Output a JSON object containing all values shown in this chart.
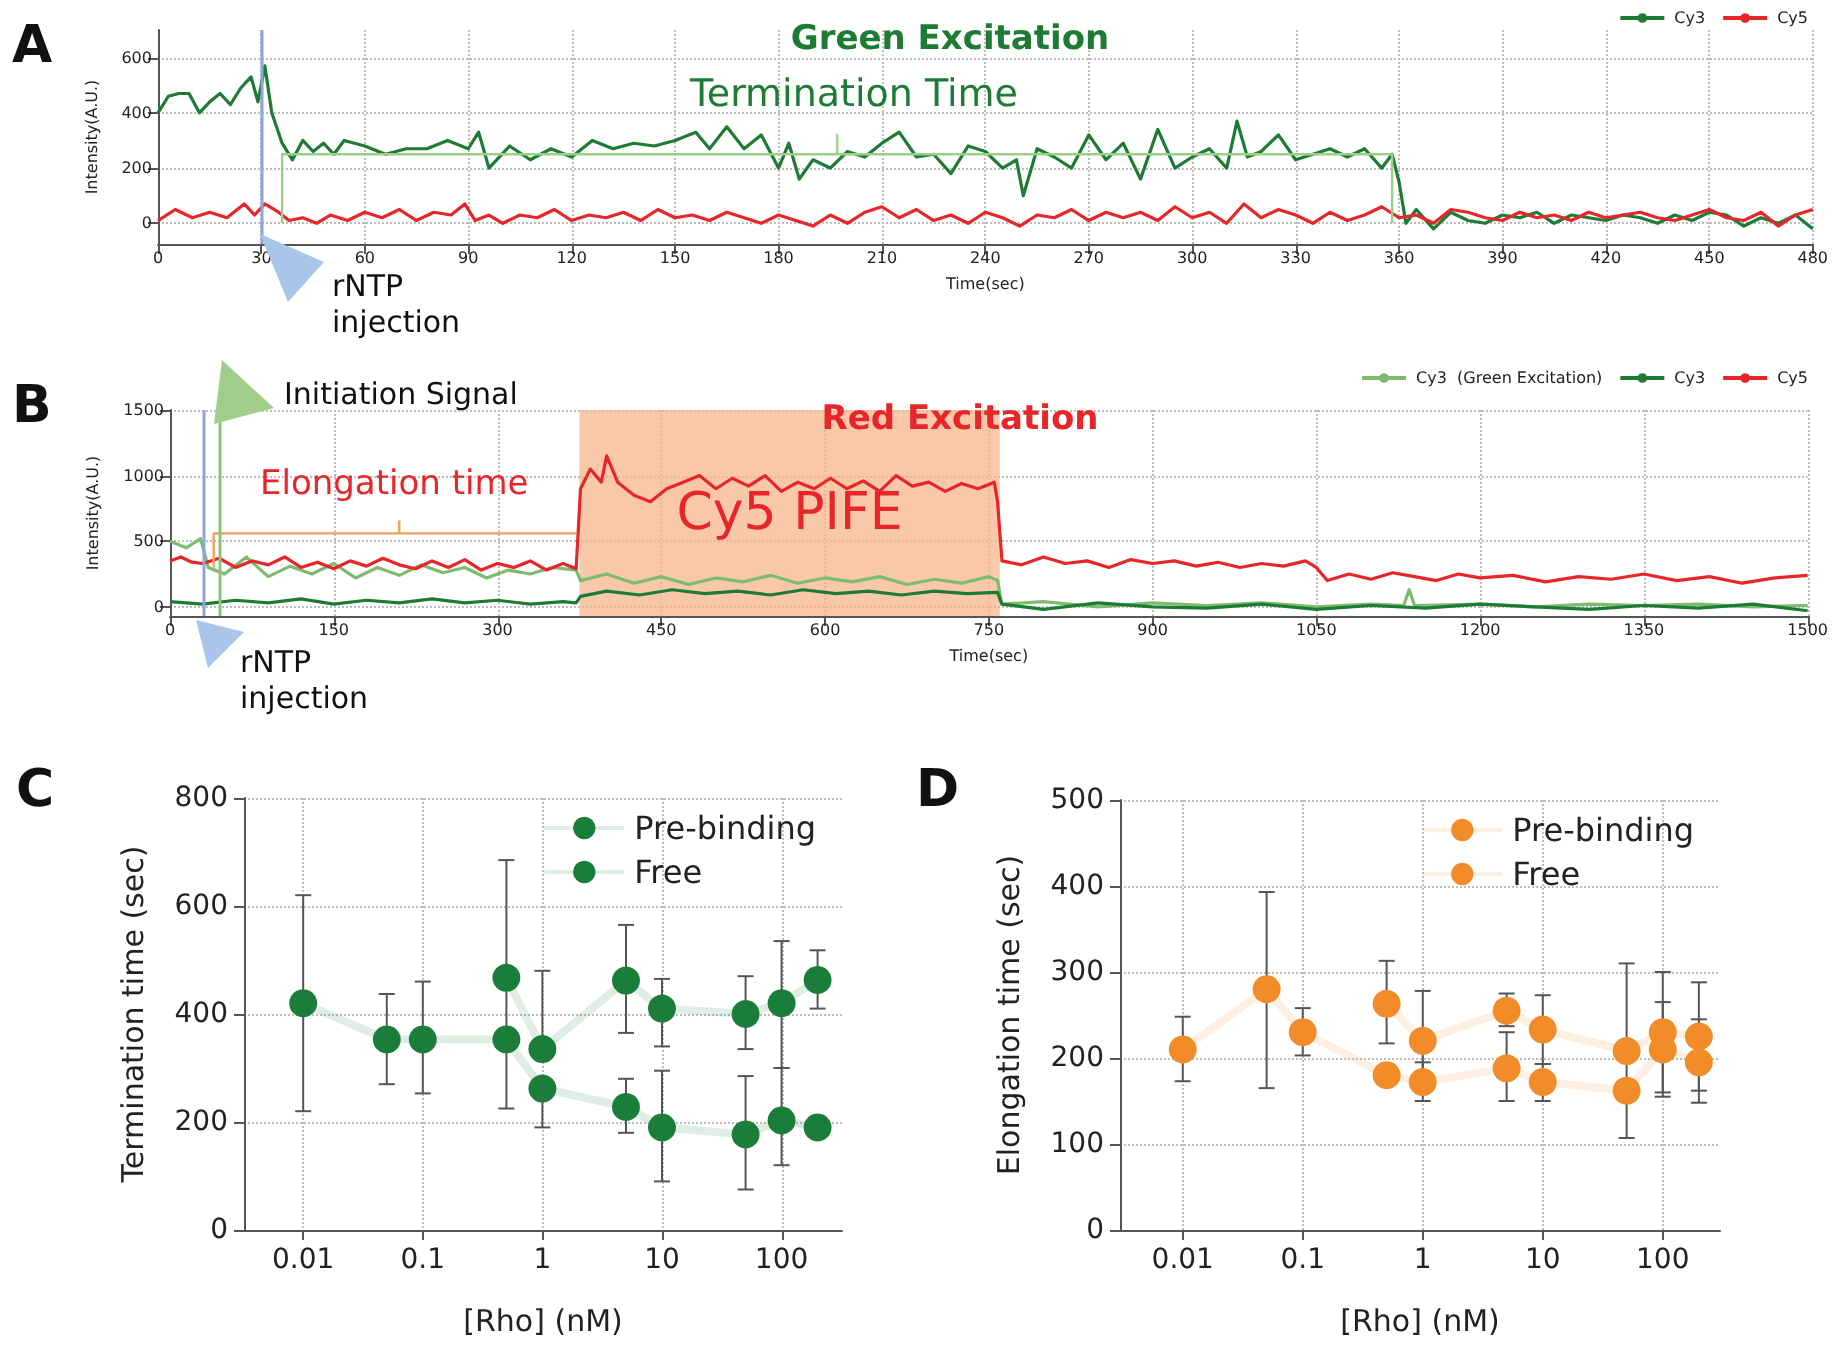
{
  "chart_data": [
    {
      "type": "line",
      "title": "Green Excitation",
      "xlabel": "Time(sec)",
      "ylabel": "Intensity(A.U.)",
      "annotations": [
        "A",
        "Termination Time",
        "rNTP injection"
      ],
      "xlim": [
        0,
        480
      ],
      "xticks": [
        0,
        30,
        60,
        90,
        120,
        150,
        180,
        210,
        240,
        270,
        300,
        330,
        360,
        390,
        420,
        450,
        480
      ],
      "ylim": [
        -75,
        700
      ],
      "yticks": [
        0,
        200,
        400,
        600
      ],
      "grid": true,
      "legend": "top right",
      "ref_lines": [
        {
          "axis": "x",
          "value": 30,
          "label": null,
          "color": "#8aa6dc"
        }
      ],
      "series": [
        {
          "name": "Cy3",
          "color": "#1e7b34",
          "x": [
            0,
            3,
            6,
            9,
            12,
            15,
            18,
            21,
            24,
            27,
            29,
            31,
            33,
            36,
            39,
            42,
            45,
            48,
            51,
            54,
            60,
            66,
            72,
            78,
            84,
            90,
            93,
            96,
            102,
            108,
            114,
            120,
            126,
            132,
            138,
            144,
            150,
            156,
            160,
            165,
            170,
            175,
            180,
            183,
            186,
            190,
            195,
            200,
            205,
            210,
            215,
            220,
            225,
            230,
            235,
            240,
            245,
            249,
            251,
            255,
            260,
            265,
            270,
            275,
            280,
            285,
            290,
            295,
            300,
            305,
            310,
            313,
            316,
            320,
            325,
            330,
            335,
            340,
            345,
            350,
            355,
            358,
            360,
            362,
            365,
            370,
            375,
            380,
            385,
            390,
            395,
            400,
            405,
            410,
            415,
            420,
            425,
            430,
            435,
            440,
            445,
            450,
            455,
            460,
            465,
            470,
            475,
            480
          ],
          "values": [
            400,
            460,
            470,
            470,
            400,
            440,
            470,
            430,
            490,
            530,
            440,
            570,
            400,
            290,
            230,
            300,
            260,
            290,
            250,
            300,
            280,
            250,
            270,
            270,
            300,
            270,
            330,
            200,
            280,
            230,
            270,
            240,
            300,
            270,
            290,
            280,
            300,
            330,
            270,
            350,
            270,
            320,
            200,
            290,
            160,
            230,
            200,
            260,
            240,
            290,
            330,
            240,
            250,
            180,
            280,
            260,
            200,
            230,
            100,
            270,
            240,
            200,
            320,
            230,
            290,
            160,
            340,
            200,
            240,
            270,
            200,
            370,
            240,
            260,
            320,
            230,
            250,
            270,
            240,
            270,
            200,
            250,
            150,
            0,
            50,
            -20,
            40,
            10,
            0,
            30,
            20,
            40,
            0,
            30,
            20,
            10,
            30,
            20,
            0,
            30,
            10,
            40,
            30,
            -10,
            20,
            0,
            30,
            -20
          ]
        },
        {
          "name": "Cy5",
          "color": "#e8262a",
          "x": [
            0,
            5,
            10,
            15,
            20,
            25,
            28,
            31,
            35,
            38,
            42,
            46,
            50,
            55,
            60,
            65,
            70,
            75,
            80,
            85,
            89,
            92,
            96,
            100,
            105,
            110,
            115,
            120,
            125,
            130,
            135,
            140,
            145,
            150,
            155,
            160,
            165,
            170,
            175,
            180,
            185,
            190,
            195,
            200,
            205,
            210,
            215,
            220,
            225,
            230,
            235,
            240,
            245,
            250,
            255,
            260,
            265,
            270,
            275,
            280,
            285,
            290,
            295,
            300,
            305,
            310,
            315,
            320,
            325,
            330,
            335,
            340,
            345,
            350,
            355,
            360,
            365,
            370,
            375,
            380,
            385,
            390,
            395,
            400,
            405,
            410,
            415,
            420,
            425,
            430,
            435,
            440,
            445,
            450,
            455,
            460,
            465,
            470,
            475,
            480
          ],
          "values": [
            10,
            50,
            20,
            40,
            20,
            70,
            30,
            70,
            40,
            10,
            20,
            0,
            30,
            10,
            40,
            20,
            50,
            10,
            40,
            30,
            70,
            10,
            30,
            0,
            30,
            20,
            50,
            10,
            30,
            20,
            40,
            10,
            50,
            20,
            30,
            10,
            40,
            20,
            0,
            30,
            10,
            -10,
            30,
            0,
            40,
            60,
            20,
            50,
            10,
            30,
            0,
            40,
            20,
            -10,
            30,
            20,
            50,
            10,
            40,
            20,
            40,
            10,
            60,
            20,
            40,
            0,
            70,
            20,
            50,
            30,
            0,
            40,
            10,
            30,
            60,
            20,
            30,
            0,
            50,
            40,
            20,
            10,
            40,
            20,
            30,
            10,
            40,
            20,
            30,
            40,
            20,
            10,
            30,
            50,
            20,
            10,
            40,
            -10,
            30,
            50
          ]
        },
        {
          "color": "#9bcf8a",
          "x": [
            36,
            36,
            197,
            197,
            197,
            358,
            358
          ],
          "values": [
            0,
            250,
            250,
            320,
            250,
            250,
            0
          ]
        }
      ]
    },
    {
      "type": "line",
      "title": "Red Excitation",
      "xlabel": "Time(sec)",
      "ylabel": "Intensity(A.U.)",
      "annotations": [
        "B",
        "Initiation Signal",
        "Elongation time",
        "rNTP injection"
      ],
      "xlim": [
        0,
        1500
      ],
      "xticks": [
        0,
        150,
        300,
        450,
        600,
        750,
        900,
        1050,
        1200,
        1350,
        1500
      ],
      "ylim": [
        -70,
        1500
      ],
      "yticks": [
        0,
        500,
        1000,
        1500
      ],
      "grid": true,
      "legend": "top right",
      "ref_lines": [
        {
          "axis": "x",
          "value": 30,
          "label": null,
          "color": "#8aa6dc"
        },
        {
          "axis": "x",
          "value": 45,
          "label": null,
          "color": "#8fc27a"
        }
      ],
      "bands": [
        {
          "axis": "x",
          "from": 375,
          "to": 760,
          "label": "Cy5 PIFE",
          "color": "#f5b68c"
        }
      ],
      "series": [
        {
          "name": "Cy3  (Green Excitation)",
          "color": "#7dbb6e",
          "x": [
            0,
            15,
            28,
            35,
            50,
            70,
            90,
            110,
            130,
            150,
            170,
            190,
            210,
            230,
            250,
            270,
            290,
            310,
            330,
            350,
            372,
            376,
            400,
            425,
            450,
            475,
            500,
            525,
            550,
            575,
            600,
            625,
            650,
            675,
            700,
            725,
            750,
            758,
            762,
            800,
            850,
            900,
            950,
            1000,
            1050,
            1100,
            1130,
            1135,
            1140,
            1200,
            1250,
            1300,
            1350,
            1400,
            1450,
            1500
          ],
          "values": [
            500,
            450,
            520,
            300,
            250,
            380,
            230,
            310,
            250,
            330,
            220,
            300,
            240,
            320,
            260,
            300,
            220,
            280,
            250,
            300,
            280,
            200,
            250,
            180,
            230,
            170,
            220,
            190,
            240,
            180,
            220,
            190,
            230,
            170,
            210,
            180,
            230,
            200,
            20,
            40,
            0,
            30,
            10,
            30,
            0,
            20,
            10,
            130,
            10,
            20,
            0,
            20,
            10,
            20,
            0,
            10
          ]
        },
        {
          "name": "Cy3",
          "color": "#1e7b34",
          "x": [
            0,
            30,
            60,
            90,
            120,
            150,
            180,
            210,
            240,
            270,
            300,
            330,
            360,
            372,
            376,
            400,
            430,
            460,
            490,
            520,
            550,
            580,
            610,
            640,
            670,
            700,
            730,
            758,
            762,
            800,
            850,
            900,
            950,
            1000,
            1050,
            1100,
            1150,
            1200,
            1250,
            1300,
            1350,
            1400,
            1450,
            1500
          ],
          "values": [
            40,
            20,
            50,
            30,
            60,
            20,
            50,
            30,
            60,
            30,
            50,
            20,
            40,
            30,
            80,
            120,
            90,
            130,
            100,
            120,
            90,
            130,
            100,
            120,
            90,
            120,
            100,
            110,
            20,
            -20,
            30,
            0,
            -10,
            20,
            -20,
            10,
            -10,
            20,
            0,
            -20,
            10,
            -10,
            20,
            -30
          ]
        },
        {
          "name": "Cy5",
          "color": "#e8262a",
          "x": [
            0,
            10,
            20,
            30,
            45,
            60,
            75,
            90,
            105,
            120,
            135,
            150,
            165,
            180,
            195,
            210,
            225,
            240,
            255,
            270,
            285,
            300,
            315,
            330,
            345,
            360,
            372,
            376,
            385,
            395,
            400,
            410,
            425,
            440,
            455,
            470,
            485,
            500,
            515,
            530,
            545,
            560,
            575,
            590,
            605,
            620,
            635,
            650,
            665,
            680,
            695,
            710,
            725,
            740,
            755,
            758,
            762,
            780,
            800,
            820,
            840,
            860,
            880,
            900,
            920,
            940,
            960,
            980,
            1000,
            1020,
            1040,
            1050,
            1060,
            1080,
            1100,
            1120,
            1140,
            1160,
            1180,
            1200,
            1230,
            1260,
            1290,
            1320,
            1350,
            1380,
            1410,
            1440,
            1470,
            1500
          ],
          "values": [
            350,
            380,
            340,
            330,
            370,
            300,
            350,
            320,
            380,
            300,
            340,
            290,
            350,
            310,
            370,
            320,
            290,
            350,
            300,
            360,
            280,
            330,
            300,
            350,
            280,
            330,
            290,
            900,
            1050,
            950,
            1150,
            950,
            850,
            800,
            900,
            950,
            1000,
            900,
            980,
            920,
            1000,
            880,
            950,
            900,
            980,
            900,
            960,
            880,
            1000,
            920,
            950,
            880,
            940,
            900,
            950,
            800,
            350,
            320,
            380,
            330,
            350,
            300,
            360,
            330,
            350,
            310,
            340,
            300,
            330,
            310,
            350,
            300,
            200,
            250,
            210,
            260,
            230,
            200,
            250,
            220,
            240,
            190,
            230,
            210,
            250,
            200,
            230,
            180,
            220,
            240
          ]
        },
        {
          "color": "#f0a060",
          "x": [
            40,
            40,
            210,
            210,
            210,
            372
          ],
          "values": [
            300,
            560,
            560,
            650,
            560,
            560
          ]
        }
      ]
    },
    {
      "type": "line",
      "xlabel": "[Rho] (nM)",
      "ylabel": "Termination time (sec)",
      "annotations": [
        "C"
      ],
      "log": "x",
      "xlim": [
        0.0032,
        320
      ],
      "xticks": [
        0.01,
        0.1,
        1,
        10,
        100
      ],
      "ylim": [
        0,
        800
      ],
      "yticks": [
        0,
        200,
        400,
        600,
        800
      ],
      "grid": true,
      "legend": "top right",
      "marker": "circle",
      "series": [
        {
          "name": "Pre-binding",
          "color": "#1b7d3a",
          "x": [
            0.5,
            1,
            5,
            10,
            50,
            100,
            200
          ],
          "values": [
            467,
            335,
            462,
            410,
            400,
            420,
            463
          ],
          "errors": [
            [
              225,
              685
            ],
            [
              335,
              480
            ],
            [
              365,
              565
            ],
            [
              340,
              465
            ],
            [
              335,
              470
            ],
            [
              300,
              535
            ],
            [
              410,
              518
            ]
          ]
        },
        {
          "name": "Free",
          "color": "#1b7d3a",
          "x": [
            0.01,
            0.05,
            0.1,
            0.5,
            1,
            5,
            10,
            50,
            100,
            200
          ],
          "values": [
            420,
            353,
            353,
            353,
            262,
            228,
            190,
            177,
            203,
            190
          ],
          "errors": [
            [
              220,
              620
            ],
            [
              270,
              437
            ],
            [
              253,
              460
            ],
            null,
            [
              190,
              262
            ],
            [
              180,
              280
            ],
            [
              90,
              295
            ],
            [
              75,
              285
            ],
            [
              120,
              300
            ],
            null
          ]
        }
      ]
    },
    {
      "type": "line",
      "xlabel": "[Rho] (nM)",
      "ylabel": "Elongation time (sec)",
      "annotations": [
        "D"
      ],
      "log": "x",
      "xlim": [
        0.003,
        300
      ],
      "xticks": [
        0.01,
        0.1,
        1,
        10,
        100
      ],
      "ylim": [
        0,
        500
      ],
      "yticks": [
        0,
        100,
        200,
        300,
        400,
        500
      ],
      "grid": true,
      "legend": "top right",
      "marker": "circle",
      "series": [
        {
          "name": "Pre-binding",
          "color": "#f28c28",
          "x": [
            0.5,
            1,
            5,
            10,
            50,
            100,
            200
          ],
          "values": [
            263,
            220,
            255,
            233,
            208,
            230,
            225
          ],
          "errors": [
            [
              217,
              313
            ],
            [
              162,
              278
            ],
            [
              237,
              275
            ],
            [
              193,
              273
            ],
            null,
            [
              160,
              265
            ],
            [
              162,
              288
            ]
          ]
        },
        {
          "name": "Free",
          "color": "#f28c28",
          "x": [
            0.01,
            0.05,
            0.1,
            0.5,
            1,
            5,
            10,
            50,
            100,
            200
          ],
          "values": [
            210,
            280,
            230,
            180,
            172,
            188,
            172,
            162,
            210,
            195
          ],
          "errors": [
            [
              173,
              248
            ],
            [
              165,
              393
            ],
            [
              203,
              258
            ],
            null,
            [
              150,
              195
            ],
            [
              150,
              230
            ],
            [
              150,
              193
            ],
            [
              107,
              310
            ],
            [
              155,
              300
            ],
            [
              148,
              245
            ]
          ]
        }
      ]
    }
  ]
}
